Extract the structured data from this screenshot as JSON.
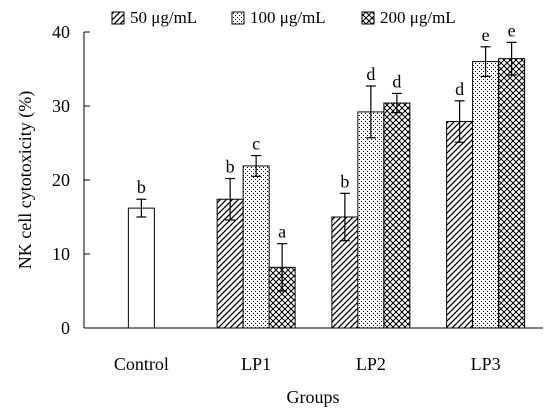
{
  "chart_data": {
    "type": "bar",
    "title": "",
    "xlabel": "Groups",
    "ylabel": "NK cell cytotoxicity (%)",
    "ylim": [
      0,
      40
    ],
    "yticks": [
      "0",
      "10",
      "20",
      "30",
      "40"
    ],
    "grid": false,
    "legend_position": "top",
    "series": [
      {
        "name": "50 μg/mL",
        "pattern": "diagonal",
        "values": [
          null,
          17.4,
          15.0,
          27.9
        ],
        "errors": [
          null,
          2.8,
          3.2,
          2.8
        ],
        "letters": [
          null,
          "b",
          "b",
          "d"
        ]
      },
      {
        "name": "100 μg/mL",
        "pattern": "dots",
        "values": [
          null,
          21.9,
          29.2,
          36.0
        ],
        "errors": [
          null,
          1.4,
          3.5,
          2.0
        ],
        "letters": [
          null,
          "c",
          "d",
          "e"
        ]
      },
      {
        "name": "200 μg/mL",
        "pattern": "crosshatch",
        "values": [
          null,
          8.2,
          30.4,
          36.4
        ],
        "errors": [
          null,
          3.2,
          1.3,
          2.2
        ],
        "letters": [
          null,
          "a",
          "d",
          "e"
        ]
      },
      {
        "name": "Control",
        "pattern": "none",
        "values": [
          16.2,
          null,
          null,
          null
        ],
        "errors": [
          1.2,
          null,
          null,
          null
        ],
        "letters": [
          "b",
          null,
          null,
          null
        ]
      }
    ],
    "categories": [
      "Control",
      "LP1",
      "LP2",
      "LP3"
    ]
  }
}
